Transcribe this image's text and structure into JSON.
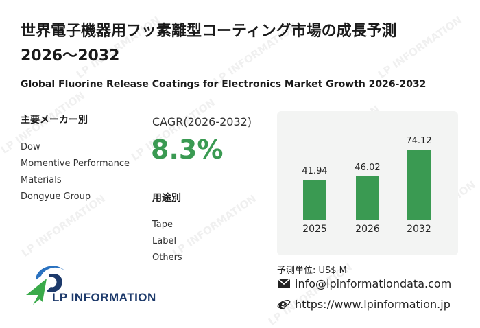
{
  "header": {
    "title_line1": "世界電子機器用フッ素離型コーティング市場の成長予測",
    "title_line2": "2026～2032",
    "subtitle": "Global Fluorine Release Coatings for Electronics Market Growth 2026-2032"
  },
  "manufacturers": {
    "heading": "主要メーカー別",
    "items": [
      "Dow",
      "Momentive Performance",
      "Materials",
      "Dongyue Group"
    ]
  },
  "cagr": {
    "label": "CAGR(2026-2032)",
    "value": "8.3%"
  },
  "applications": {
    "heading": "用途別",
    "items": [
      "Tape",
      "Label",
      "Others"
    ]
  },
  "chart_data": {
    "type": "bar",
    "categories": [
      "2025",
      "2026",
      "2032"
    ],
    "values": [
      41.94,
      46.02,
      74.12
    ],
    "value_labels": [
      "41.94",
      "46.02",
      "74.12"
    ],
    "ylim": [
      0,
      80
    ],
    "bar_color": "#3a9a52"
  },
  "unit": "予測単位:  US$ M",
  "contact": {
    "email": "info@lpinformationdata.com",
    "website": "https://www.lpinformation.jp"
  },
  "logo": {
    "text": "LP INFORMATION"
  },
  "watermark": "LP INFORMATION",
  "colors": {
    "accent": "#3a9a52",
    "logo_blue": "#1d3a6b"
  }
}
